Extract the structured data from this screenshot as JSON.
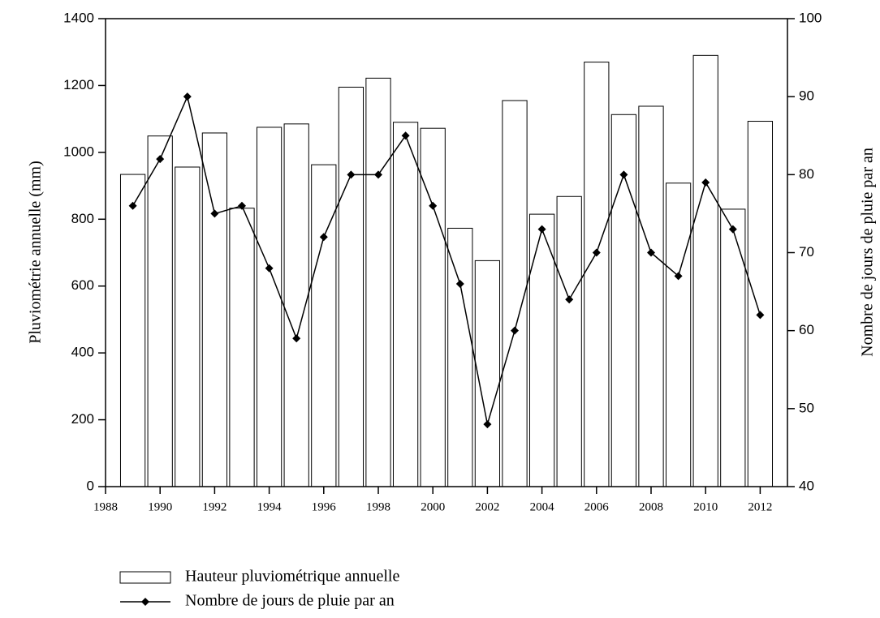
{
  "chart_data": {
    "type": "bar-line",
    "x": [
      1989,
      1990,
      1991,
      1992,
      1993,
      1994,
      1995,
      1996,
      1997,
      1998,
      1999,
      2000,
      2001,
      2002,
      2003,
      2004,
      2005,
      2006,
      2007,
      2008,
      2009,
      2010,
      2011,
      2012
    ],
    "series": [
      {
        "name": "Hauteur pluviométrique annuelle",
        "type": "bar",
        "color": "#ffffff",
        "edgecolor": "#000000",
        "values": [
          934,
          1049,
          956,
          1058,
          833,
          1075,
          1085,
          963,
          1195,
          1222,
          1090,
          1072,
          773,
          676,
          1155,
          815,
          868,
          1270,
          1113,
          1138,
          908,
          1290,
          830,
          1093
        ]
      },
      {
        "name": "Nombre de jours de pluie par an",
        "type": "line",
        "axis": "y2",
        "color": "#000000",
        "values": [
          76,
          82,
          90,
          75,
          76,
          68,
          59,
          72,
          80,
          80,
          85,
          76,
          66,
          48,
          60,
          73,
          64,
          70,
          80,
          70,
          67,
          79,
          73,
          62
        ]
      }
    ],
    "ylabel": "Pluviométrie annuelle (mm)",
    "y2label": "Nombre de jours de pluie par an",
    "xlim": [
      1988,
      2013
    ],
    "xticks": [
      1988,
      1990,
      1992,
      1994,
      1996,
      1998,
      2000,
      2002,
      2004,
      2006,
      2008,
      2010,
      2012
    ],
    "ylim": [
      0,
      1400
    ],
    "yticks": [
      0,
      200,
      400,
      600,
      800,
      1000,
      1200,
      1400
    ],
    "y2lim": [
      40,
      100
    ],
    "y2ticks": [
      40,
      50,
      60,
      70,
      80,
      90,
      100
    ],
    "legend": "bottom"
  }
}
